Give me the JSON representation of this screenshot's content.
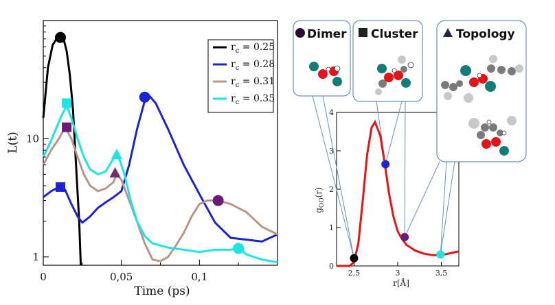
{
  "chart_data": [
    {
      "type": "line",
      "name": "L(t) vs time",
      "ylabel": "L(t)",
      "xlabel": "Time (ps)",
      "yscale": "log",
      "ylim": [
        0.85,
        100
      ],
      "xlim": [
        0,
        0.15
      ],
      "xticks": [
        {
          "value": 0,
          "label": "0"
        },
        {
          "value": 0.05,
          "label": "0,05"
        },
        {
          "value": 0.1,
          "label": "0,1"
        }
      ],
      "yticks": [
        {
          "value": 1,
          "label": "1"
        },
        {
          "value": 10,
          "label": "10"
        }
      ],
      "legend_position": "top-right",
      "series": [
        {
          "name": "r_c = 0.25",
          "rc": "0.25",
          "color": "#000000",
          "points": [
            [
              0,
              15
            ],
            [
              0.003,
              40
            ],
            [
              0.006,
              62
            ],
            [
              0.009,
              72
            ],
            [
              0.011,
              74
            ],
            [
              0.013,
              70
            ],
            [
              0.015,
              55
            ],
            [
              0.017,
              35
            ],
            [
              0.019,
              18
            ],
            [
              0.021,
              6
            ],
            [
              0.023,
              2
            ],
            [
              0.024,
              0.85
            ]
          ],
          "marker": {
            "shape": "circle",
            "x": 0.011,
            "y": 72
          }
        },
        {
          "name": "r_c = 0.28",
          "rc": "0.28",
          "color": "#1a23d6",
          "points": [
            [
              0,
              3.2
            ],
            [
              0.005,
              3.6
            ],
            [
              0.01,
              3.9
            ],
            [
              0.014,
              3.7
            ],
            [
              0.018,
              2.8
            ],
            [
              0.022,
              2.2
            ],
            [
              0.025,
              1.95
            ],
            [
              0.03,
              2.2
            ],
            [
              0.035,
              2.6
            ],
            [
              0.04,
              2.9
            ],
            [
              0.045,
              3.2
            ],
            [
              0.05,
              3.6
            ],
            [
              0.055,
              6
            ],
            [
              0.06,
              12
            ],
            [
              0.065,
              21
            ],
            [
              0.068,
              23
            ],
            [
              0.072,
              20
            ],
            [
              0.08,
              12
            ],
            [
              0.09,
              6
            ],
            [
              0.1,
              3.4
            ],
            [
              0.11,
              1.95
            ],
            [
              0.12,
              1.45
            ],
            [
              0.13,
              1.4
            ],
            [
              0.14,
              1.35
            ],
            [
              0.15,
              1.55
            ]
          ],
          "marker": {
            "shape": "circle",
            "x": 0.065,
            "y": 22.5
          },
          "marker2": {
            "shape": "square",
            "x": 0.011,
            "y": 3.9
          }
        },
        {
          "name": "r_c = 0.31",
          "rc": "0.31",
          "color": "#b8968c",
          "points": [
            [
              0,
              6
            ],
            [
              0.005,
              8
            ],
            [
              0.01,
              10
            ],
            [
              0.014,
              12.5
            ],
            [
              0.018,
              10
            ],
            [
              0.022,
              7
            ],
            [
              0.026,
              5
            ],
            [
              0.03,
              4
            ],
            [
              0.035,
              3.6
            ],
            [
              0.04,
              3.8
            ],
            [
              0.045,
              4.3
            ],
            [
              0.047,
              5
            ],
            [
              0.05,
              4.5
            ],
            [
              0.055,
              3
            ],
            [
              0.06,
              2
            ],
            [
              0.065,
              1.3
            ],
            [
              0.07,
              0.95
            ],
            [
              0.075,
              0.92
            ],
            [
              0.08,
              1
            ],
            [
              0.085,
              1.25
            ],
            [
              0.09,
              1.6
            ],
            [
              0.095,
              2.2
            ],
            [
              0.1,
              2.8
            ],
            [
              0.105,
              3
            ],
            [
              0.112,
              3
            ],
            [
              0.12,
              2.8
            ],
            [
              0.13,
              2.4
            ],
            [
              0.14,
              1.8
            ],
            [
              0.15,
              1.55
            ]
          ],
          "marker": {
            "shape": "square",
            "x": 0.015,
            "y": 12.5
          },
          "marker2": {
            "shape": "triangle",
            "x": 0.046,
            "y": 5.1
          },
          "marker3": {
            "shape": "circle",
            "x": 0.112,
            "y": 3.0
          }
        },
        {
          "name": "r_c = 0.35",
          "rc": "0.35",
          "color": "#1ae6e6",
          "points": [
            [
              0,
              7
            ],
            [
              0.004,
              9
            ],
            [
              0.008,
              12
            ],
            [
              0.012,
              16
            ],
            [
              0.015,
              19
            ],
            [
              0.018,
              15
            ],
            [
              0.022,
              10
            ],
            [
              0.026,
              7
            ],
            [
              0.03,
              5.5
            ],
            [
              0.035,
              5
            ],
            [
              0.04,
              5.3
            ],
            [
              0.045,
              6.8
            ],
            [
              0.048,
              7.2
            ],
            [
              0.052,
              5
            ],
            [
              0.056,
              3
            ],
            [
              0.06,
              2
            ],
            [
              0.065,
              1.5
            ],
            [
              0.07,
              1.3
            ],
            [
              0.08,
              1.2
            ],
            [
              0.09,
              1.15
            ],
            [
              0.1,
              1.1
            ],
            [
              0.11,
              1.15
            ],
            [
              0.12,
              1.15
            ],
            [
              0.125,
              1.2
            ],
            [
              0.13,
              1.05
            ],
            [
              0.14,
              0.95
            ],
            [
              0.15,
              0.9
            ]
          ],
          "marker": {
            "shape": "square",
            "x": 0.015,
            "y": 20
          },
          "marker2": {
            "shape": "triangle",
            "x": 0.047,
            "y": 7.3
          },
          "marker3": {
            "shape": "circle",
            "x": 0.125,
            "y": 1.18
          }
        }
      ],
      "legend_labels": {
        "prefix": "r",
        "sub": "c",
        "suffix": " = "
      }
    },
    {
      "type": "line",
      "name": "radial distribution",
      "xlabel": "r[Å]",
      "ylabel_main": "g",
      "ylabel_sub": "OO",
      "ylabel_tail": "(r)",
      "xlim": [
        2.3,
        3.7
      ],
      "ylim": [
        0,
        4
      ],
      "xticks": [
        {
          "value": 2.5,
          "label": "2,5"
        },
        {
          "value": 3,
          "label": "3"
        },
        {
          "value": 3.5,
          "label": "3,5"
        }
      ],
      "yticks": [
        {
          "value": 0,
          "label": "0"
        },
        {
          "value": 1,
          "label": "1"
        },
        {
          "value": 2,
          "label": "2"
        },
        {
          "value": 3,
          "label": "3"
        },
        {
          "value": 4,
          "label": "4"
        }
      ],
      "color": "#ee1111",
      "points": [
        [
          2.3,
          0
        ],
        [
          2.45,
          0
        ],
        [
          2.5,
          0.1
        ],
        [
          2.55,
          0.6
        ],
        [
          2.6,
          1.7
        ],
        [
          2.65,
          2.9
        ],
        [
          2.7,
          3.6
        ],
        [
          2.74,
          3.75
        ],
        [
          2.8,
          3.4
        ],
        [
          2.85,
          2.7
        ],
        [
          2.9,
          1.9
        ],
        [
          2.95,
          1.3
        ],
        [
          3.0,
          0.9
        ],
        [
          3.05,
          0.7
        ],
        [
          3.1,
          0.55
        ],
        [
          3.2,
          0.4
        ],
        [
          3.3,
          0.32
        ],
        [
          3.4,
          0.28
        ],
        [
          3.5,
          0.28
        ],
        [
          3.6,
          0.33
        ],
        [
          3.7,
          0.38
        ]
      ],
      "markers": [
        {
          "name": "dimer-point",
          "x": 2.5,
          "y": 0.2,
          "color": "#000000"
        },
        {
          "name": "cluster-point",
          "x": 2.86,
          "y": 2.65,
          "color": "#1b24d6"
        },
        {
          "name": "topology-point-1",
          "x": 3.08,
          "y": 0.75,
          "color": "#6a1a78"
        },
        {
          "name": "topology-point-2",
          "x": 3.49,
          "y": 0.3,
          "color": "#1ae6e6"
        }
      ]
    }
  ],
  "panels": {
    "dimer": {
      "title": "Dimer"
    },
    "cluster": {
      "title": "Cluster"
    },
    "topology": {
      "title": "Topology"
    }
  },
  "colors": {
    "panel_border": "#6a8fc0",
    "dimer_symbol": "#2a0a2e",
    "cluster_symbol": "#222222",
    "topology_symbol": "#1d2a3a",
    "oxygen": "#e8121a",
    "teal": "#127d78",
    "carbon": "#7a7a7a",
    "hydrogen": "#c8c8c8"
  }
}
